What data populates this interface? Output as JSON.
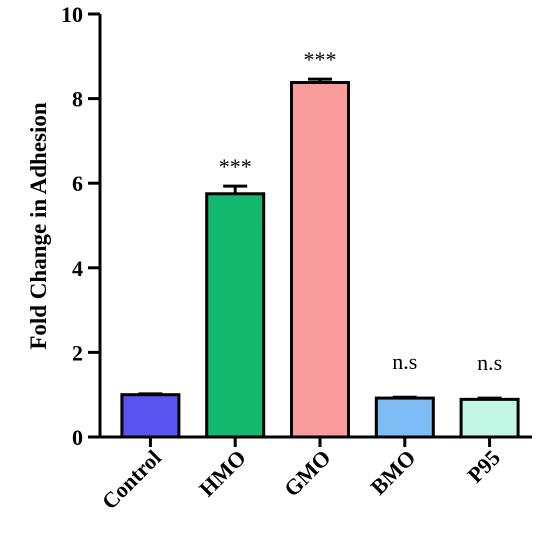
{
  "chart_data": {
    "type": "bar",
    "title": "",
    "xlabel": "",
    "ylabel": "Fold Change in Adhesion",
    "ylim": [
      0,
      10
    ],
    "yticks": [
      0,
      2,
      4,
      6,
      8,
      10
    ],
    "grid": false,
    "categories": [
      "Control",
      "HMO",
      "GMO",
      "BMO",
      "P95"
    ],
    "values": [
      1.0,
      5.75,
      8.38,
      0.92,
      0.89
    ],
    "errors": [
      0.02,
      0.18,
      0.08,
      0.02,
      0.03
    ],
    "annotations": [
      "",
      "***",
      "***",
      "n.s",
      "n.s"
    ],
    "colors": [
      "#5a55f0",
      "#13b86f",
      "#fa9c9c",
      "#7ebcf6",
      "#c2f7e6"
    ]
  }
}
